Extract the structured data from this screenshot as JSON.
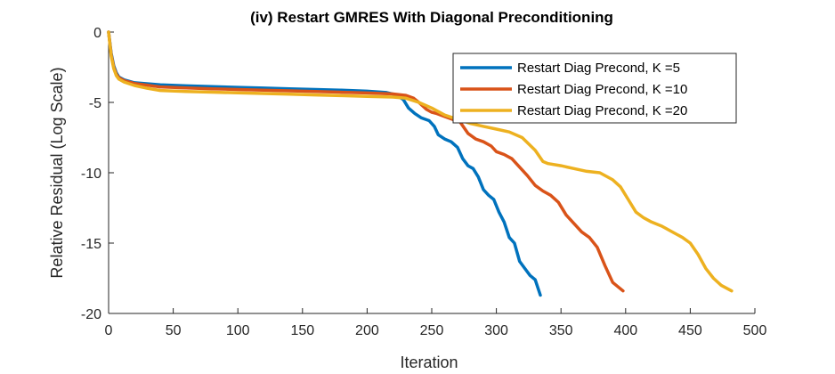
{
  "chart_data": {
    "type": "line",
    "title": "(iv) Restart GMRES With Diagonal Preconditioning",
    "xlabel": "Iteration",
    "ylabel": "Relative Residual (Log Scale)",
    "xlim": [
      0,
      500
    ],
    "ylim": [
      -20,
      0
    ],
    "xticks": [
      "0",
      "50",
      "100",
      "150",
      "200",
      "250",
      "300",
      "350",
      "400",
      "450",
      "500"
    ],
    "yticks": [
      "0",
      "-5",
      "-10",
      "-15",
      "-20"
    ],
    "grid": false,
    "legend_position": "top-right",
    "colors": {
      "k5": "#0072BD",
      "k10": "#D95319",
      "k20": "#EDB120",
      "axis": "#262626"
    },
    "series": [
      {
        "name": "Restart Diag Precond, K =5",
        "x": [
          0,
          2,
          4,
          6,
          8,
          12,
          20,
          40,
          60,
          80,
          100,
          120,
          140,
          160,
          180,
          200,
          215,
          222,
          228,
          232,
          237,
          242,
          248,
          252,
          255,
          260,
          265,
          270,
          274,
          278,
          282,
          286,
          290,
          294,
          298,
          302,
          306,
          310,
          314,
          318,
          322,
          326,
          330,
          334
        ],
        "y": [
          0,
          -1.5,
          -2.4,
          -2.9,
          -3.2,
          -3.4,
          -3.6,
          -3.75,
          -3.82,
          -3.88,
          -3.93,
          -3.98,
          -4.03,
          -4.08,
          -4.13,
          -4.2,
          -4.3,
          -4.45,
          -4.8,
          -5.4,
          -5.8,
          -6.1,
          -6.3,
          -6.7,
          -7.3,
          -7.6,
          -7.8,
          -8.2,
          -9.0,
          -9.5,
          -9.7,
          -10.3,
          -11.2,
          -11.6,
          -11.9,
          -12.8,
          -13.5,
          -14.6,
          -15.0,
          -16.3,
          -16.8,
          -17.3,
          -17.6,
          -18.7
        ]
      },
      {
        "name": "Restart Diag Precond, K =10",
        "x": [
          0,
          2,
          4,
          6,
          8,
          12,
          20,
          40,
          60,
          80,
          100,
          120,
          140,
          160,
          180,
          200,
          220,
          230,
          236,
          240,
          246,
          250,
          254,
          260,
          266,
          272,
          278,
          284,
          290,
          296,
          300,
          306,
          312,
          318,
          324,
          330,
          336,
          342,
          348,
          354,
          360,
          366,
          372,
          378,
          384,
          390,
          398
        ],
        "y": [
          0,
          -1.6,
          -2.5,
          -3.0,
          -3.25,
          -3.45,
          -3.65,
          -3.9,
          -3.97,
          -4.03,
          -4.08,
          -4.13,
          -4.18,
          -4.23,
          -4.28,
          -4.33,
          -4.4,
          -4.5,
          -4.7,
          -5.0,
          -5.5,
          -5.7,
          -5.8,
          -6.0,
          -6.2,
          -6.4,
          -7.2,
          -7.6,
          -7.8,
          -8.1,
          -8.5,
          -8.7,
          -9.0,
          -9.6,
          -10.2,
          -10.9,
          -11.3,
          -11.6,
          -12.1,
          -13.0,
          -13.6,
          -14.2,
          -14.6,
          -15.3,
          -16.6,
          -17.8,
          -18.4
        ]
      },
      {
        "name": "Restart Diag Precond, K =20",
        "x": [
          0,
          2,
          4,
          6,
          8,
          12,
          20,
          30,
          40,
          60,
          80,
          100,
          120,
          140,
          160,
          180,
          200,
          220,
          230,
          240,
          250,
          260,
          270,
          280,
          290,
          300,
          310,
          320,
          330,
          336,
          340,
          350,
          360,
          370,
          380,
          390,
          396,
          402,
          408,
          414,
          420,
          428,
          436,
          444,
          450,
          456,
          462,
          468,
          474,
          482
        ],
        "y": [
          0,
          -1.7,
          -2.6,
          -3.1,
          -3.35,
          -3.55,
          -3.8,
          -4.0,
          -4.15,
          -4.22,
          -4.27,
          -4.32,
          -4.37,
          -4.42,
          -4.47,
          -4.52,
          -4.57,
          -4.62,
          -4.7,
          -5.0,
          -5.4,
          -5.9,
          -6.2,
          -6.5,
          -6.7,
          -6.9,
          -7.1,
          -7.5,
          -8.4,
          -9.2,
          -9.35,
          -9.5,
          -9.7,
          -9.9,
          -10.0,
          -10.5,
          -11.0,
          -11.9,
          -12.8,
          -13.2,
          -13.5,
          -13.8,
          -14.2,
          -14.6,
          -15.0,
          -15.8,
          -16.8,
          -17.5,
          -18.0,
          -18.4
        ]
      }
    ]
  }
}
